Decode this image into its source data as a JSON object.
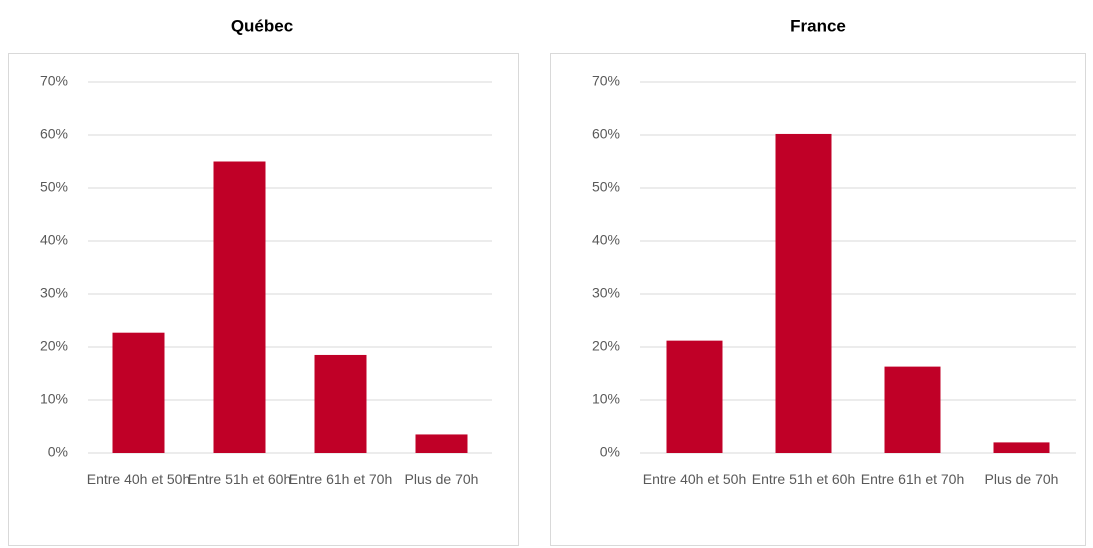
{
  "chart_data": [
    {
      "type": "bar",
      "title": "Québec",
      "categories": [
        "Entre 40h et 50h",
        "Entre 51h et 60h",
        "Entre 61h et 70h",
        "Plus de 70h"
      ],
      "values": [
        22.7,
        55,
        18.5,
        3.5
      ],
      "color": "#c00027",
      "ylim": [
        0,
        70
      ],
      "yticks": [
        {
          "value": 0,
          "label": "0%"
        },
        {
          "value": 10,
          "label": "10%"
        },
        {
          "value": 20,
          "label": "20%"
        },
        {
          "value": 30,
          "label": "30%"
        },
        {
          "value": 40,
          "label": "40%"
        },
        {
          "value": 50,
          "label": "50%"
        },
        {
          "value": 60,
          "label": "60%"
        },
        {
          "value": 70,
          "label": "70%"
        }
      ],
      "grid": true
    },
    {
      "type": "bar",
      "title": "France",
      "categories": [
        "Entre 40h et 50h",
        "Entre 51h et 60h",
        "Entre 61h et 70h",
        "Plus de 70h"
      ],
      "values": [
        21.2,
        60.2,
        16.3,
        2
      ],
      "color": "#c00027",
      "ylim": [
        0,
        70
      ],
      "yticks": [
        {
          "value": 0,
          "label": "0%"
        },
        {
          "value": 10,
          "label": "10%"
        },
        {
          "value": 20,
          "label": "20%"
        },
        {
          "value": 30,
          "label": "30%"
        },
        {
          "value": 40,
          "label": "40%"
        },
        {
          "value": 50,
          "label": "50%"
        },
        {
          "value": 60,
          "label": "60%"
        },
        {
          "value": 70,
          "label": "70%"
        }
      ],
      "grid": true
    }
  ]
}
